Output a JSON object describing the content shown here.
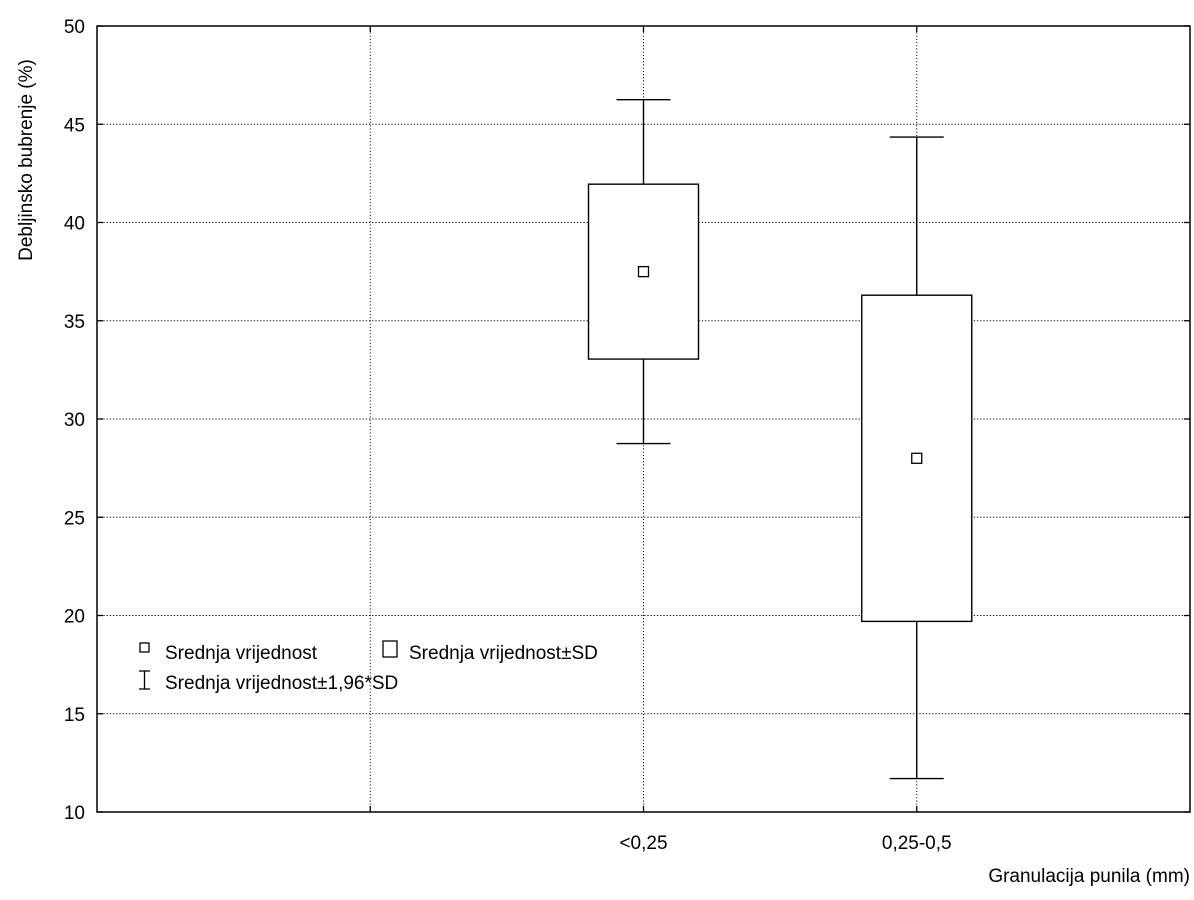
{
  "chart_data": {
    "type": "boxplot",
    "xlabel": "Granulacija punila (mm)",
    "ylabel": "Debljinsko bubrenje (%)",
    "ylim": [
      10,
      50
    ],
    "yticks": [
      10,
      15,
      20,
      25,
      30,
      35,
      40,
      45,
      50
    ],
    "categories": [
      "<0,25",
      "0,25-0,5"
    ],
    "series": [
      {
        "category": "<0,25",
        "mean": 37.5,
        "mean_minus_sd": 33.05,
        "mean_plus_sd": 41.95,
        "mean_minus_1_96sd": 28.75,
        "mean_plus_1_96sd": 46.25
      },
      {
        "category": "0,25-0,5",
        "mean": 28.0,
        "mean_minus_sd": 19.7,
        "mean_plus_sd": 36.3,
        "mean_minus_1_96sd": 11.7,
        "mean_plus_1_96sd": 44.35
      }
    ],
    "grid": true,
    "legend": {
      "placement": "left-lower",
      "items": [
        {
          "symbol": "small-square",
          "label": "Srednja vrijednost"
        },
        {
          "symbol": "box",
          "label": "Srednja vrijednost±SD"
        },
        {
          "symbol": "whisker",
          "label": "Srednja vrijednost±1,96*SD"
        }
      ]
    }
  }
}
